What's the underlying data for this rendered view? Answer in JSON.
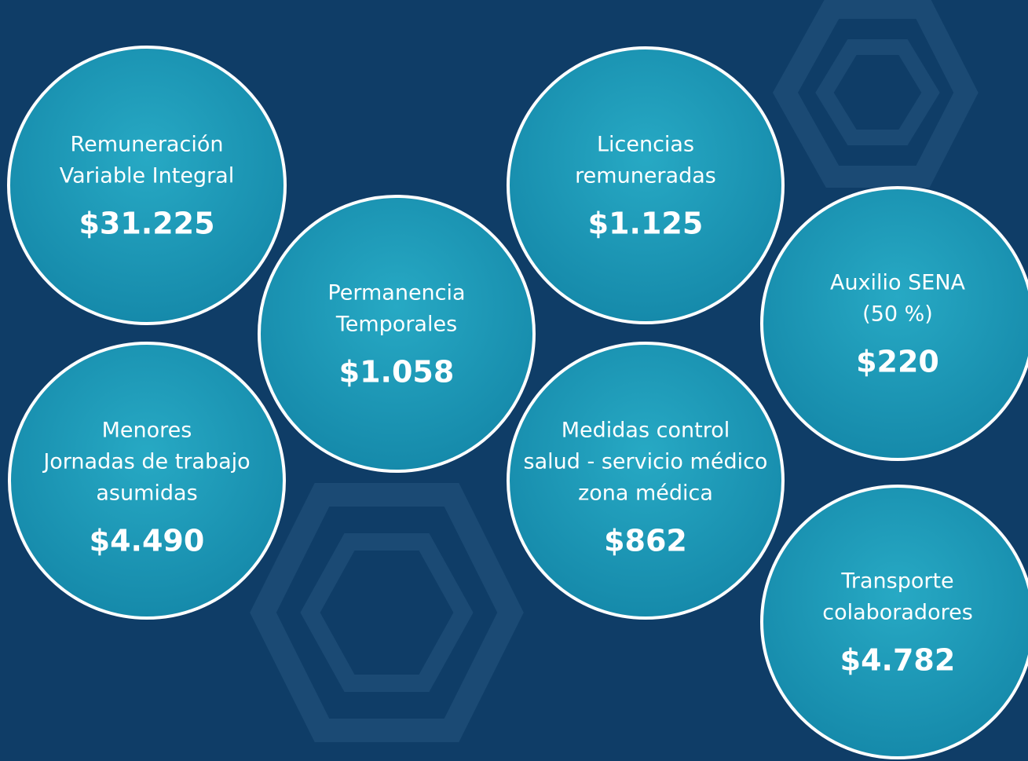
{
  "items": [
    {
      "label": [
        "Remuneración",
        "Variable Integral"
      ],
      "value": "$31.225"
    },
    {
      "label": [
        "Permanencia",
        "Temporales"
      ],
      "value": "$1.058"
    },
    {
      "label": [
        "Licencias",
        "remuneradas"
      ],
      "value": "$1.125"
    },
    {
      "label": [
        "Auxilio SENA",
        "(50 %)"
      ],
      "value": "$220"
    },
    {
      "label": [
        "Menores",
        "Jornadas de trabajo",
        "asumidas"
      ],
      "value": "$4.490"
    },
    {
      "label": [
        "Medidas control",
        "salud - servicio médico",
        "zona médica"
      ],
      "value": "$862"
    },
    {
      "label": [
        "Transporte",
        "colaboradores"
      ],
      "value": "$4.782"
    }
  ]
}
